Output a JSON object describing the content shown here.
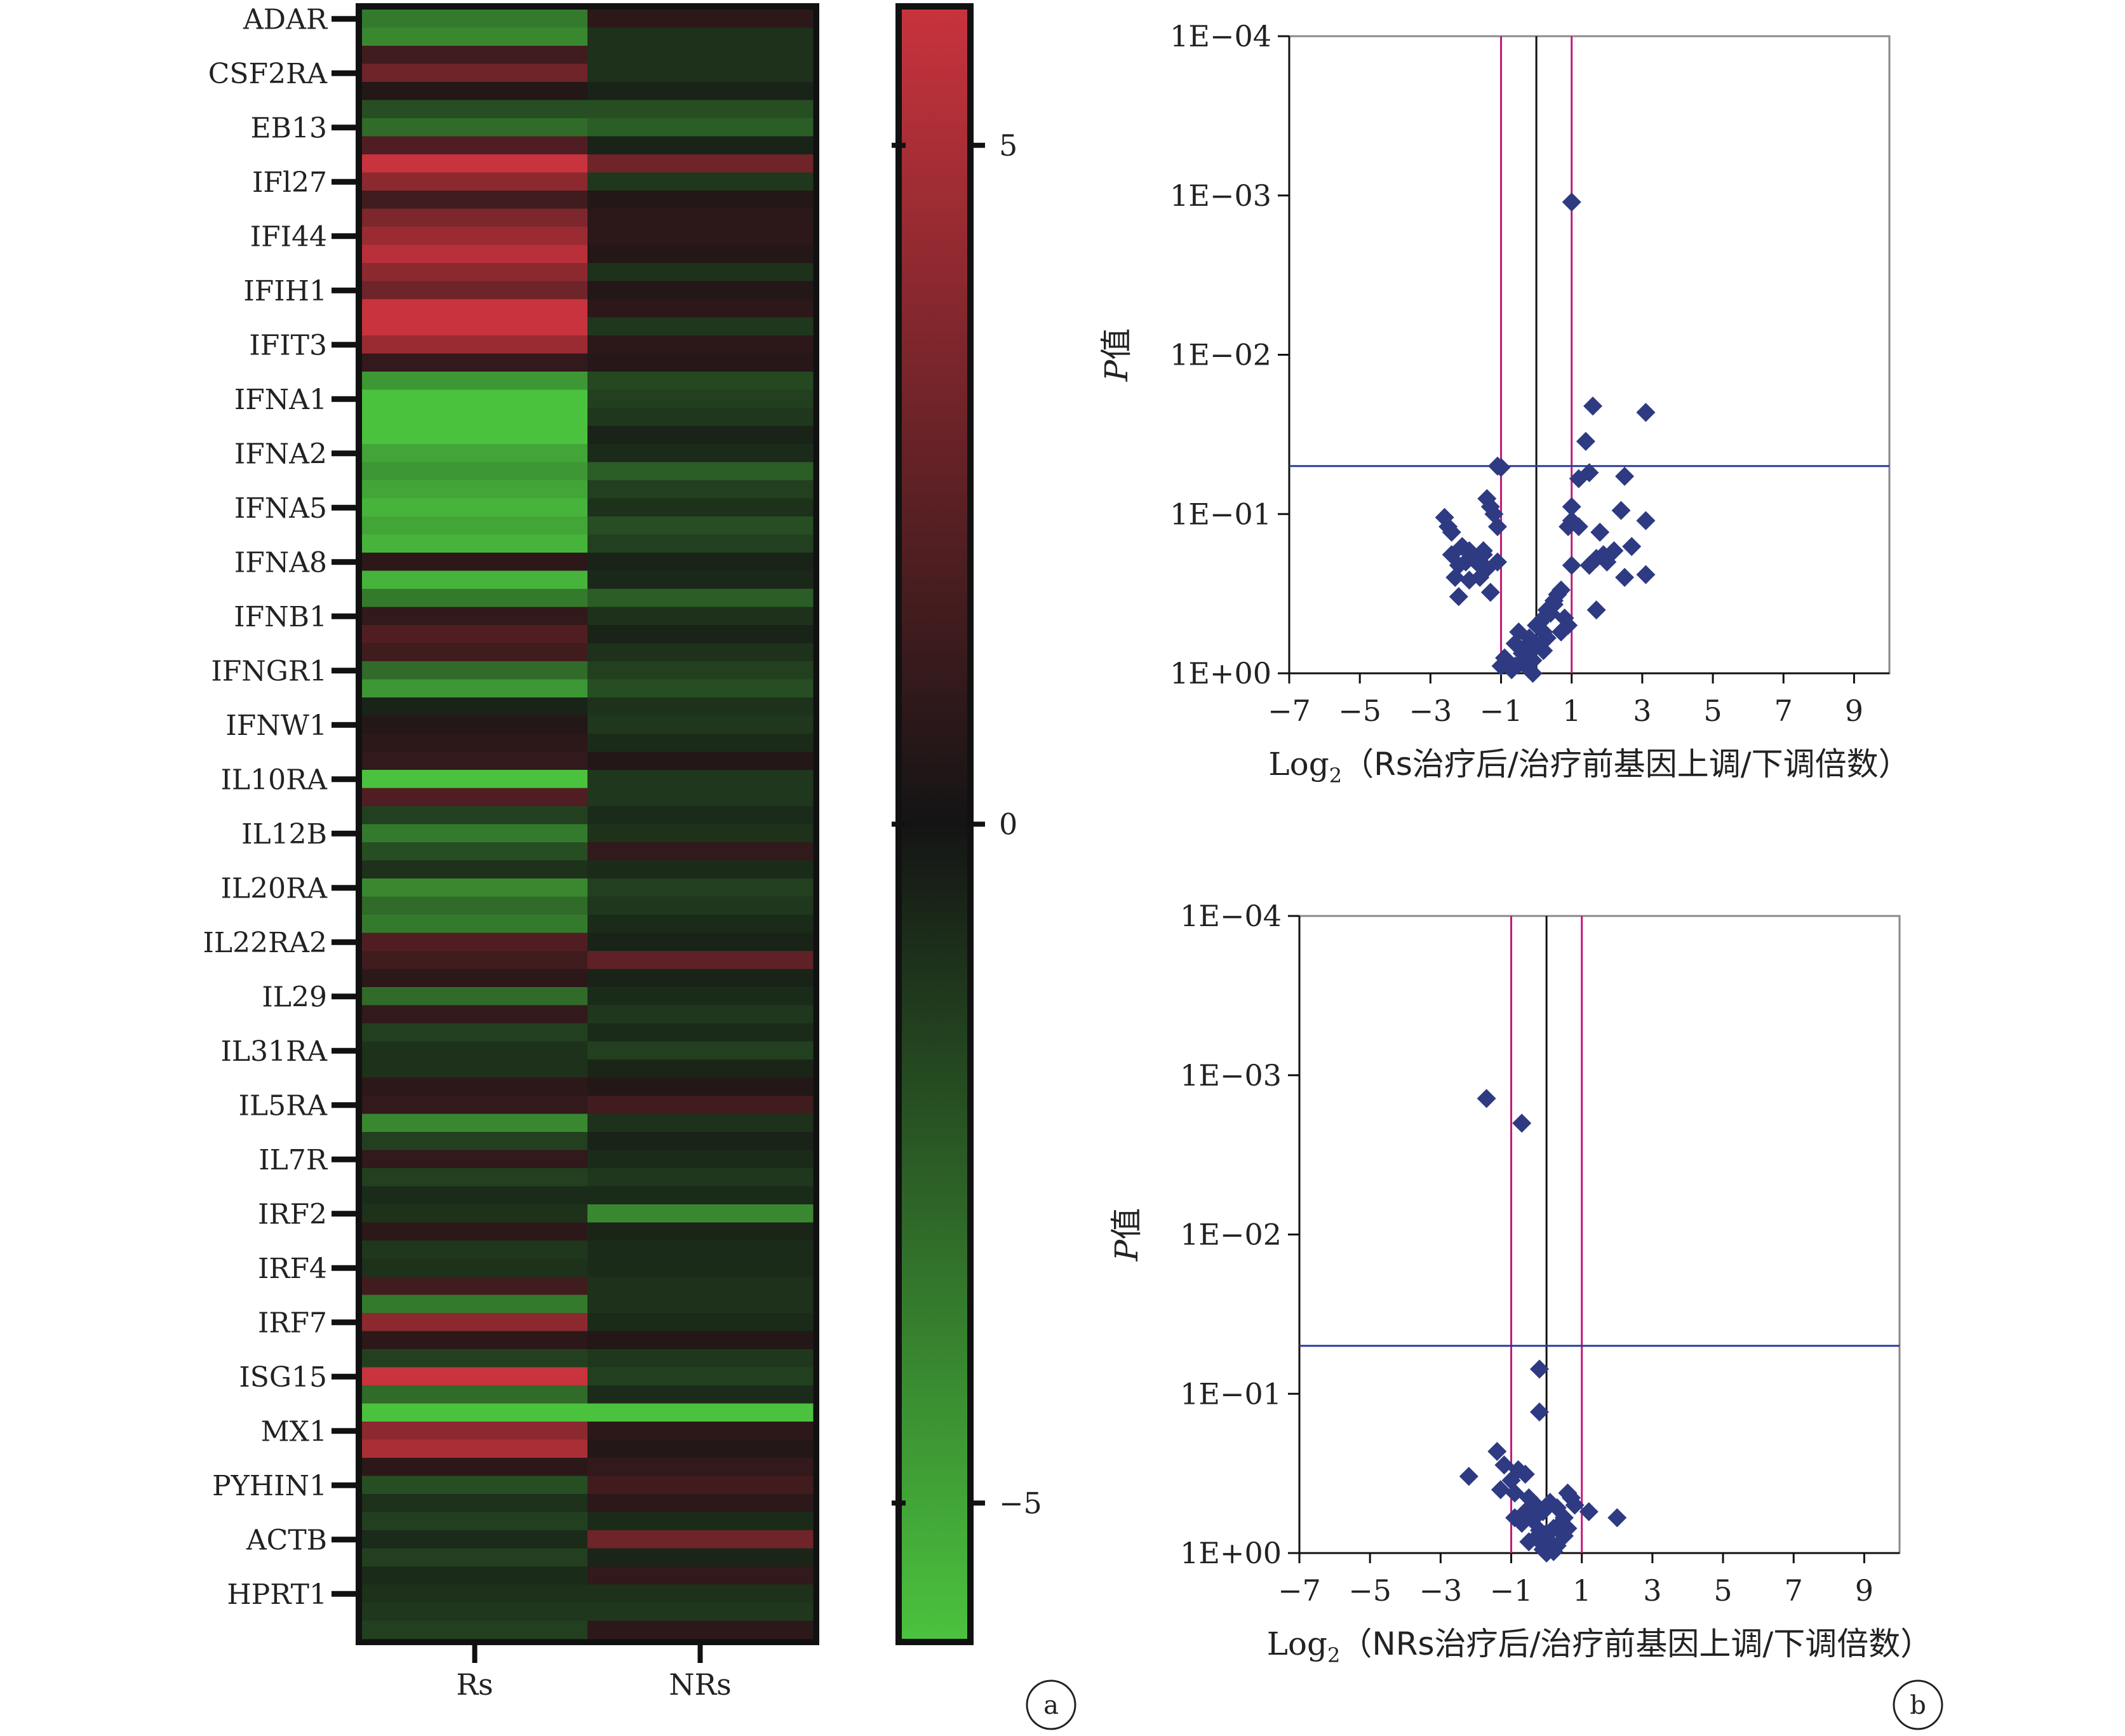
{
  "panel_labels": [
    "a",
    "b"
  ],
  "chart_data": [
    {
      "type": "heatmap",
      "columns": [
        "Rs",
        "NRs"
      ],
      "labeled_genes": [
        "ADAR",
        "CSF2RA",
        "EB13",
        "IFl27",
        "IFI44",
        "IFIH1",
        "IFIT3",
        "IFNA1",
        "IFNA2",
        "IFNA5",
        "IFNA8",
        "IFNB1",
        "IFNGR1",
        "IFNW1",
        "IL10RA",
        "IL12B",
        "IL20RA",
        "IL22RA2",
        "IL29",
        "IL31RA",
        "IL5RA",
        "IL7R",
        "IRF2",
        "IRF4",
        "IRF7",
        "ISG15",
        "MX1",
        "PYHIN1",
        "ACTB",
        "HPRT1"
      ],
      "rows_per_label": 3,
      "values": [
        [
          -3.5,
          0.8
        ],
        [
          -4.0,
          -1.0
        ],
        [
          1.5,
          -1.0
        ],
        [
          3.0,
          -1.0
        ],
        [
          0.5,
          -0.5
        ],
        [
          -2.0,
          -2.0
        ],
        [
          -3.0,
          -2.5
        ],
        [
          2.0,
          -0.5
        ],
        [
          7.0,
          3.0
        ],
        [
          4.0,
          -1.2
        ],
        [
          1.5,
          0.5
        ],
        [
          3.5,
          0.8
        ],
        [
          4.5,
          0.8
        ],
        [
          5.5,
          0.5
        ],
        [
          4.0,
          -1.0
        ],
        [
          3.0,
          0.5
        ],
        [
          8.0,
          0.8
        ],
        [
          6.0,
          -1.2
        ],
        [
          4.5,
          0.8
        ],
        [
          1.0,
          0.6
        ],
        [
          -4.5,
          -1.8
        ],
        [
          -6.0,
          -1.5
        ],
        [
          -7.5,
          -1.2
        ],
        [
          -6.5,
          -0.5
        ],
        [
          -5.0,
          -0.8
        ],
        [
          -4.5,
          -2.5
        ],
        [
          -5.0,
          -1.5
        ],
        [
          -5.5,
          -1.0
        ],
        [
          -5.0,
          -2.0
        ],
        [
          -5.5,
          -1.5
        ],
        [
          0.8,
          -0.5
        ],
        [
          -5.5,
          -0.7
        ],
        [
          -3.5,
          -2.5
        ],
        [
          1.0,
          -1.0
        ],
        [
          2.0,
          -0.5
        ],
        [
          1.5,
          -1.0
        ],
        [
          -3.0,
          -1.5
        ],
        [
          -4.5,
          -2.0
        ],
        [
          -0.5,
          -1.0
        ],
        [
          0.5,
          -1.2
        ],
        [
          0.8,
          -0.8
        ],
        [
          1.0,
          0.5
        ],
        [
          -6.0,
          -1.2
        ],
        [
          2.0,
          -1.2
        ],
        [
          -1.5,
          -0.8
        ],
        [
          -3.5,
          -1.0
        ],
        [
          -2.0,
          1.0
        ],
        [
          -1.0,
          -0.8
        ],
        [
          -4.0,
          -1.5
        ],
        [
          -3.0,
          -1.2
        ],
        [
          -3.5,
          -0.8
        ],
        [
          2.0,
          -0.5
        ],
        [
          1.5,
          2.5
        ],
        [
          0.8,
          -0.5
        ],
        [
          -3.0,
          -0.8
        ],
        [
          1.0,
          -1.2
        ],
        [
          -1.5,
          -0.8
        ],
        [
          -1.0,
          -1.5
        ],
        [
          -1.0,
          -0.6
        ],
        [
          0.8,
          0.5
        ],
        [
          1.0,
          1.5
        ],
        [
          -4.0,
          -1.0
        ],
        [
          -1.5,
          -0.5
        ],
        [
          1.0,
          -0.8
        ],
        [
          -1.5,
          -1.2
        ],
        [
          -0.8,
          -0.8
        ],
        [
          -1.0,
          -4.0
        ],
        [
          0.8,
          -0.6
        ],
        [
          -1.2,
          -0.8
        ],
        [
          -1.0,
          -0.8
        ],
        [
          1.5,
          -1.0
        ],
        [
          -3.5,
          -1.0
        ],
        [
          4.0,
          -0.8
        ],
        [
          0.8,
          0.5
        ],
        [
          -1.5,
          -1.2
        ],
        [
          8.0,
          -1.5
        ],
        [
          -3.0,
          -0.8
        ],
        [
          -7.0,
          -6.0
        ],
        [
          4.0,
          0.8
        ],
        [
          5.0,
          0.5
        ],
        [
          0.8,
          1.0
        ],
        [
          -2.0,
          1.5
        ],
        [
          -1.0,
          0.8
        ],
        [
          -1.5,
          -0.8
        ],
        [
          -0.8,
          3.0
        ],
        [
          -1.5,
          -0.6
        ],
        [
          -0.8,
          1.0
        ],
        [
          -1.0,
          -1.0
        ],
        [
          -1.2,
          -1.2
        ],
        [
          -1.5,
          0.8
        ]
      ],
      "colorbar": {
        "min": -6,
        "max": 6,
        "ticks": [
          5,
          0,
          -5
        ],
        "tick_labels": [
          "5",
          "0",
          "−5"
        ],
        "low_color": "#4bc23e",
        "mid_color": "#141414",
        "high_color": "#c8333d"
      }
    },
    {
      "type": "scatter",
      "xlabel_prefix": "Log",
      "xlabel_sub": "2",
      "xlabel_rest": "（Rs治疗后/治疗前基因上调/下调倍数）",
      "ylabel_italic": "P",
      "ylabel_rest": "值",
      "xlim": [
        -7,
        10
      ],
      "xticks": [
        -7,
        -5,
        -3,
        -1,
        1,
        3,
        5,
        7,
        9
      ],
      "xtick_labels": [
        "−7",
        "−5",
        "−3",
        "−1",
        "1",
        "3",
        "5",
        "7",
        "9"
      ],
      "yscale": "log-reversed",
      "ylim": [
        1,
        0.0001
      ],
      "yticks": [
        1,
        0.1,
        0.01,
        0.001,
        0.0001
      ],
      "ytick_labels": [
        "1E+00",
        "1E−01",
        "1E−02",
        "1E−03",
        "1E−04"
      ],
      "hlines": [
        0.05
      ],
      "vlines_magenta": [
        -1,
        1
      ],
      "vline_black": 0,
      "marker_color": "#2e3a82",
      "points": [
        [
          1.0,
          0.0011
        ],
        [
          1.6,
          0.021
        ],
        [
          3.1,
          0.023
        ],
        [
          1.4,
          0.035
        ],
        [
          -1.1,
          0.05
        ],
        [
          -1.0,
          0.051
        ],
        [
          1.5,
          0.055
        ],
        [
          1.2,
          0.06
        ],
        [
          2.5,
          0.058
        ],
        [
          1.0,
          0.09
        ],
        [
          2.4,
          0.095
        ],
        [
          3.1,
          0.11
        ],
        [
          0.9,
          0.12
        ],
        [
          1.0,
          0.11
        ],
        [
          1.2,
          0.12
        ],
        [
          1.8,
          0.13
        ],
        [
          -2.6,
          0.105
        ],
        [
          -2.4,
          0.13
        ],
        [
          -2.5,
          0.12
        ],
        [
          -2.1,
          0.16
        ],
        [
          -1.8,
          0.19
        ],
        [
          -1.9,
          0.17
        ],
        [
          -1.5,
          0.17
        ],
        [
          -1.2,
          0.1
        ],
        [
          -1.4,
          0.08
        ],
        [
          -1.3,
          0.09
        ],
        [
          -1.1,
          0.12
        ],
        [
          -2.2,
          0.21
        ],
        [
          -2.0,
          0.2
        ],
        [
          -1.7,
          0.2
        ],
        [
          -1.5,
          0.18
        ],
        [
          -2.3,
          0.25
        ],
        [
          -1.9,
          0.26
        ],
        [
          -1.1,
          0.2
        ],
        [
          -2.2,
          0.33
        ],
        [
          -1.6,
          0.25
        ],
        [
          -1.4,
          0.22
        ],
        [
          -1.3,
          0.31
        ],
        [
          -2.4,
          0.18
        ],
        [
          1.7,
          0.19
        ],
        [
          2.0,
          0.2
        ],
        [
          2.2,
          0.17
        ],
        [
          2.5,
          0.25
        ],
        [
          3.1,
          0.24
        ],
        [
          1.5,
          0.21
        ],
        [
          2.7,
          0.16
        ],
        [
          1.9,
          0.18
        ],
        [
          1.7,
          0.4
        ],
        [
          1.0,
          0.21
        ],
        [
          0.7,
          0.3
        ],
        [
          0.6,
          0.32
        ],
        [
          0.5,
          0.37
        ],
        [
          0.3,
          0.4
        ],
        [
          0.2,
          0.45
        ],
        [
          0.0,
          0.5
        ],
        [
          0.4,
          0.42
        ],
        [
          0.5,
          0.35
        ],
        [
          0.1,
          0.48
        ],
        [
          0.2,
          0.55
        ],
        [
          0.3,
          0.6
        ],
        [
          0.1,
          0.65
        ],
        [
          -0.1,
          0.7
        ],
        [
          -0.2,
          0.6
        ],
        [
          -0.3,
          0.68
        ],
        [
          -0.5,
          0.55
        ],
        [
          -0.6,
          0.65
        ],
        [
          -0.4,
          0.75
        ],
        [
          -0.3,
          0.8
        ],
        [
          -0.1,
          0.83
        ],
        [
          -0.6,
          0.9
        ],
        [
          -0.7,
          0.95
        ],
        [
          -0.9,
          0.8
        ],
        [
          -1.0,
          0.9
        ],
        [
          -0.2,
          0.95
        ],
        [
          0.9,
          0.5
        ],
        [
          0.8,
          0.45
        ],
        [
          0.7,
          0.55
        ],
        [
          -0.5,
          0.88
        ],
        [
          -0.1,
          1.0
        ],
        [
          0.2,
          0.72
        ]
      ]
    },
    {
      "type": "scatter",
      "xlabel_prefix": "Log",
      "xlabel_sub": "2",
      "xlabel_rest": "（NRs治疗后/治疗前基因上调/下调倍数）",
      "ylabel_italic": "P",
      "ylabel_rest": "值",
      "xlim": [
        -7,
        10
      ],
      "xticks": [
        -7,
        -5,
        -3,
        -1,
        1,
        3,
        5,
        7,
        9
      ],
      "xtick_labels": [
        "−7",
        "−5",
        "−3",
        "−1",
        "1",
        "3",
        "5",
        "7",
        "9"
      ],
      "yscale": "log-reversed",
      "ylim": [
        1,
        0.0001
      ],
      "yticks": [
        1,
        0.1,
        0.01,
        0.001,
        0.0001
      ],
      "ytick_labels": [
        "1E+00",
        "1E−01",
        "1E−02",
        "1E−03",
        "1E−04"
      ],
      "hlines": [
        0.05
      ],
      "vlines_magenta": [
        -1,
        1
      ],
      "vline_black": 0,
      "marker_color": "#2e3a82",
      "points": [
        [
          -1.7,
          0.0014
        ],
        [
          -0.7,
          0.002
        ],
        [
          -0.2,
          0.07
        ],
        [
          -0.2,
          0.13
        ],
        [
          -1.4,
          0.23
        ],
        [
          -1.2,
          0.28
        ],
        [
          -2.2,
          0.33
        ],
        [
          -1.0,
          0.35
        ],
        [
          -0.8,
          0.3
        ],
        [
          -0.6,
          0.32
        ],
        [
          -1.3,
          0.4
        ],
        [
          -0.9,
          0.42
        ],
        [
          -0.5,
          0.45
        ],
        [
          -0.3,
          0.5
        ],
        [
          -0.1,
          0.55
        ],
        [
          0.1,
          0.48
        ],
        [
          0.3,
          0.52
        ],
        [
          0.5,
          0.6
        ],
        [
          0.6,
          0.42
        ],
        [
          0.7,
          0.45
        ],
        [
          0.8,
          0.5
        ],
        [
          1.2,
          0.55
        ],
        [
          2.0,
          0.6
        ],
        [
          0.4,
          0.65
        ],
        [
          0.2,
          0.7
        ],
        [
          0.0,
          0.75
        ],
        [
          -0.2,
          0.72
        ],
        [
          -0.4,
          0.62
        ],
        [
          -0.6,
          0.55
        ],
        [
          -0.7,
          0.65
        ],
        [
          -0.3,
          0.8
        ],
        [
          0.1,
          0.85
        ],
        [
          0.3,
          0.9
        ],
        [
          -0.1,
          0.95
        ],
        [
          0.2,
          0.98
        ],
        [
          -0.5,
          0.85
        ],
        [
          0.5,
          0.78
        ],
        [
          0.6,
          0.7
        ],
        [
          0.0,
          1.0
        ],
        [
          -0.9,
          0.6
        ]
      ]
    }
  ]
}
